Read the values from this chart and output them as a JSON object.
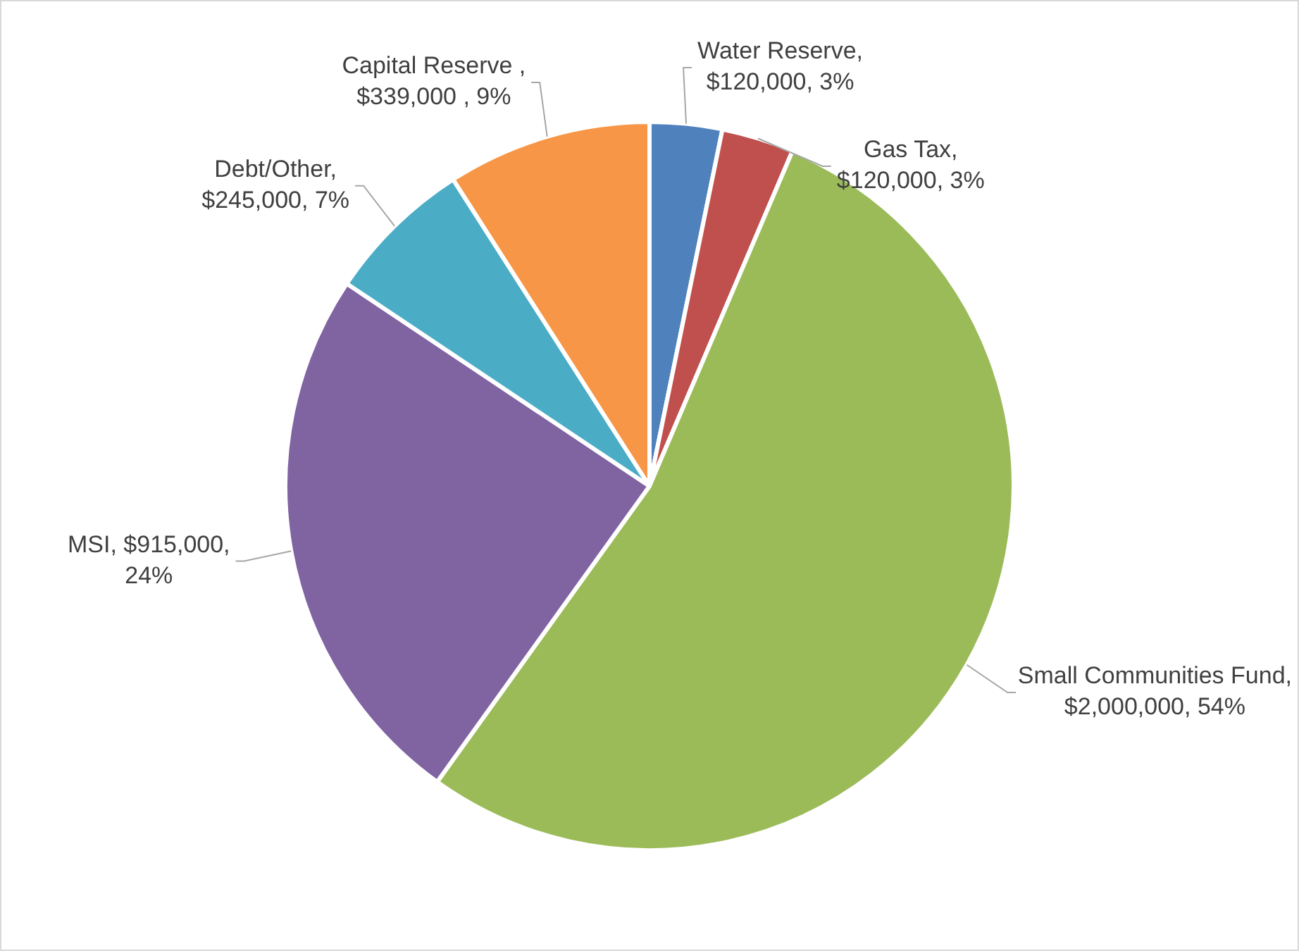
{
  "chart_data": {
    "type": "pie",
    "categories": [
      "Water Reserve",
      "Gas Tax",
      "Small Communities Fund",
      "MSI",
      "Debt/Other",
      "Capital Reserve "
    ],
    "values": [
      120000,
      120000,
      2000000,
      915000,
      245000,
      339000
    ],
    "colors": [
      "#4f81bd",
      "#c0504d",
      "#9bbb59",
      "#8064a2",
      "#4bacc6",
      "#f79646"
    ],
    "value_labels": [
      ",\n$120,000, 3%",
      ",\n$120,000, 3%",
      ",\n$2,000,000, 54%",
      ", $915,000,\n24%",
      ",\n$245,000, 7%",
      ",\n$339,000 , 9%"
    ],
    "legend": false
  }
}
